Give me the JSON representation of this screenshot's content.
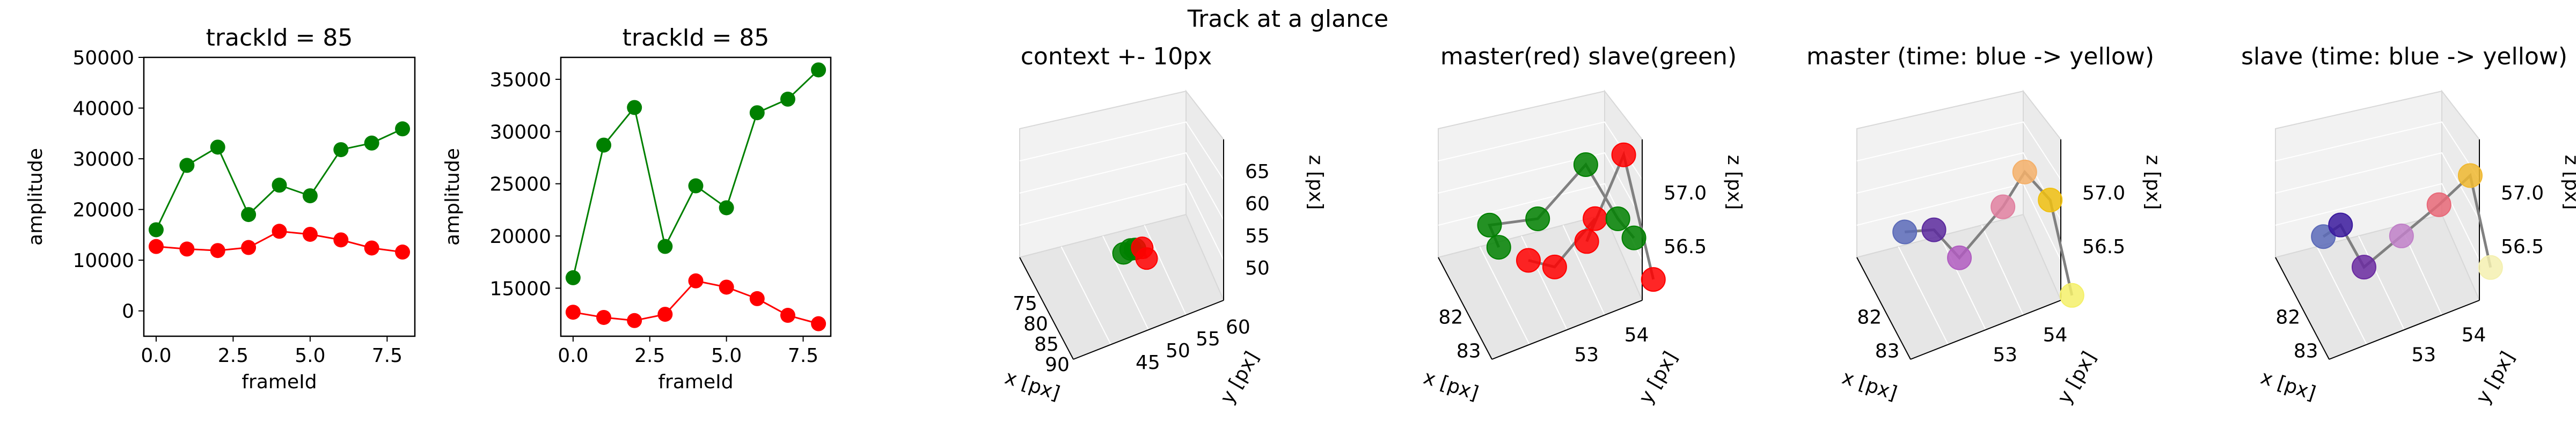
{
  "suptitle": "Track at a glance",
  "chart_data": [
    {
      "type": "line",
      "title": "trackId = 85",
      "xlabel": "frameId",
      "ylabel": "amplitude",
      "xlim": [
        -0.4,
        8.4
      ],
      "ylim": [
        -5000,
        50000
      ],
      "xticks": [
        0.0,
        2.5,
        5.0,
        7.5
      ],
      "xtick_labels": [
        "0.0",
        "2.5",
        "5.0",
        "7.5"
      ],
      "yticks": [
        0,
        10000,
        20000,
        30000,
        40000,
        50000
      ],
      "ytick_labels": [
        "0",
        "10000",
        "20000",
        "30000",
        "40000",
        "50000"
      ],
      "x": [
        0,
        1,
        2,
        3,
        4,
        5,
        6,
        7,
        8
      ],
      "series": [
        {
          "color": "#008000",
          "values": [
            16000,
            28700,
            32300,
            19000,
            24800,
            22700,
            31800,
            33100,
            35900
          ]
        },
        {
          "color": "#ff0000",
          "values": [
            12700,
            12200,
            11900,
            12500,
            15700,
            15100,
            14000,
            12400,
            11600
          ]
        }
      ]
    },
    {
      "type": "line",
      "title": "trackId = 85",
      "xlabel": "frameId",
      "ylabel": "amplitude",
      "xlim": [
        -0.4,
        8.4
      ],
      "ylim": [
        10400,
        37100
      ],
      "xticks": [
        0.0,
        2.5,
        5.0,
        7.5
      ],
      "xtick_labels": [
        "0.0",
        "2.5",
        "5.0",
        "7.5"
      ],
      "yticks": [
        15000,
        20000,
        25000,
        30000,
        35000
      ],
      "ytick_labels": [
        "15000",
        "20000",
        "25000",
        "30000",
        "35000"
      ],
      "x": [
        0,
        1,
        2,
        3,
        4,
        5,
        6,
        7,
        8
      ],
      "series": [
        {
          "color": "#008000",
          "values": [
            16000,
            28700,
            32300,
            19000,
            24800,
            22700,
            31800,
            33100,
            35900
          ]
        },
        {
          "color": "#ff0000",
          "values": [
            12700,
            12200,
            11900,
            12500,
            15700,
            15100,
            14000,
            12400,
            11600
          ]
        }
      ]
    },
    {
      "type": "scatter",
      "title": "context +- 10px",
      "xlabel": "x [px]",
      "ylabel": "y [px]",
      "zlabel": "z [px]",
      "xtick_labels": [
        "75",
        "80",
        "85",
        "90"
      ],
      "ytick_labels": [
        "45",
        "50",
        "55",
        "60"
      ],
      "ztick_labels": [
        "50",
        "55",
        "60",
        "65"
      ],
      "points": [
        {
          "x": 82.2,
          "y": 53.1,
          "z": 56.6,
          "color": "#008000"
        },
        {
          "x": 82.5,
          "y": 53.3,
          "z": 56.8,
          "color": "#008000"
        },
        {
          "x": 82.8,
          "y": 53.4,
          "z": 56.9,
          "color": "#008000"
        },
        {
          "x": 83.1,
          "y": 53.6,
          "z": 57.0,
          "color": "#ff0000"
        },
        {
          "x": 83.4,
          "y": 53.7,
          "z": 56.7,
          "color": "#ff0000"
        }
      ]
    },
    {
      "type": "scatter",
      "title": "master(red) slave(green)",
      "xlabel": "x [px]",
      "ylabel": "y [px]",
      "zlabel": "z [px]",
      "xtick_labels": [
        "82",
        "83"
      ],
      "ytick_labels": [
        "53",
        "54"
      ],
      "ztick_labels": [
        "56.5",
        "57.0"
      ],
      "series": [
        {
          "name": "master",
          "color": "#ff0000",
          "points": [
            {
              "x": 82.5,
              "y": 53.1,
              "z": 56.4
            },
            {
              "x": 82.9,
              "y": 53.2,
              "z": 56.5
            },
            {
              "x": 82.6,
              "y": 53.6,
              "z": 56.6
            },
            {
              "x": 83.1,
              "y": 53.4,
              "z": 56.7
            },
            {
              "x": 82.7,
              "y": 53.8,
              "z": 57.0
            },
            {
              "x": 83.2,
              "y": 53.9,
              "z": 56.4
            }
          ]
        },
        {
          "name": "slave",
          "color": "#008000",
          "points": [
            {
              "x": 82.0,
              "y": 53.0,
              "z": 56.3
            },
            {
              "x": 82.1,
              "y": 52.9,
              "z": 56.5
            },
            {
              "x": 82.4,
              "y": 53.2,
              "z": 56.6
            },
            {
              "x": 82.7,
              "y": 53.5,
              "z": 57.0
            },
            {
              "x": 82.9,
              "y": 53.7,
              "z": 56.7
            },
            {
              "x": 83.0,
              "y": 53.8,
              "z": 56.6
            }
          ]
        }
      ]
    },
    {
      "type": "scatter",
      "title": "master (time: blue -> yellow)",
      "xlabel": "x [px]",
      "ylabel": "y [px]",
      "zlabel": "z [px]",
      "xtick_labels": [
        "82",
        "83"
      ],
      "ytick_labels": [
        "53",
        "54"
      ],
      "ztick_labels": [
        "56.5",
        "57.0"
      ],
      "points": [
        {
          "x": 82.3,
          "y": 53.1,
          "z": 56.5,
          "color": "#5b6ab8"
        },
        {
          "x": 82.6,
          "y": 53.2,
          "z": 56.6,
          "color": "#5c2a9e"
        },
        {
          "x": 82.8,
          "y": 53.3,
          "z": 56.5,
          "color": "#b05cc0"
        },
        {
          "x": 83.0,
          "y": 53.5,
          "z": 56.8,
          "color": "#e080a0"
        },
        {
          "x": 83.1,
          "y": 53.6,
          "z": 57.0,
          "color": "#f4b06a"
        },
        {
          "x": 83.3,
          "y": 53.7,
          "z": 56.9,
          "color": "#f0c010"
        },
        {
          "x": 83.4,
          "y": 53.8,
          "z": 56.4,
          "color": "#f4f06a"
        }
      ]
    },
    {
      "type": "scatter",
      "title": "slave (time: blue -> yellow)",
      "xlabel": "x [px]",
      "ylabel": "y [px]",
      "zlabel": "z [px]",
      "xtick_labels": [
        "82",
        "83"
      ],
      "ytick_labels": [
        "53",
        "54"
      ],
      "ztick_labels": [
        "56.5",
        "57.0"
      ],
      "points": [
        {
          "x": 82.0,
          "y": 53.0,
          "z": 56.5,
          "color": "#5b6ab8"
        },
        {
          "x": 82.1,
          "y": 53.1,
          "z": 56.6,
          "color": "#3b1a9e"
        },
        {
          "x": 82.4,
          "y": 53.2,
          "z": 56.4,
          "color": "#6a2aa0"
        },
        {
          "x": 82.7,
          "y": 53.4,
          "z": 56.7,
          "color": "#c080c8"
        },
        {
          "x": 83.0,
          "y": 53.6,
          "z": 57.0,
          "color": "#e86878"
        },
        {
          "x": 83.1,
          "y": 53.8,
          "z": 57.2,
          "color": "#f0b830"
        },
        {
          "x": 83.3,
          "y": 53.9,
          "z": 56.6,
          "color": "#f4f0b0"
        }
      ]
    }
  ]
}
